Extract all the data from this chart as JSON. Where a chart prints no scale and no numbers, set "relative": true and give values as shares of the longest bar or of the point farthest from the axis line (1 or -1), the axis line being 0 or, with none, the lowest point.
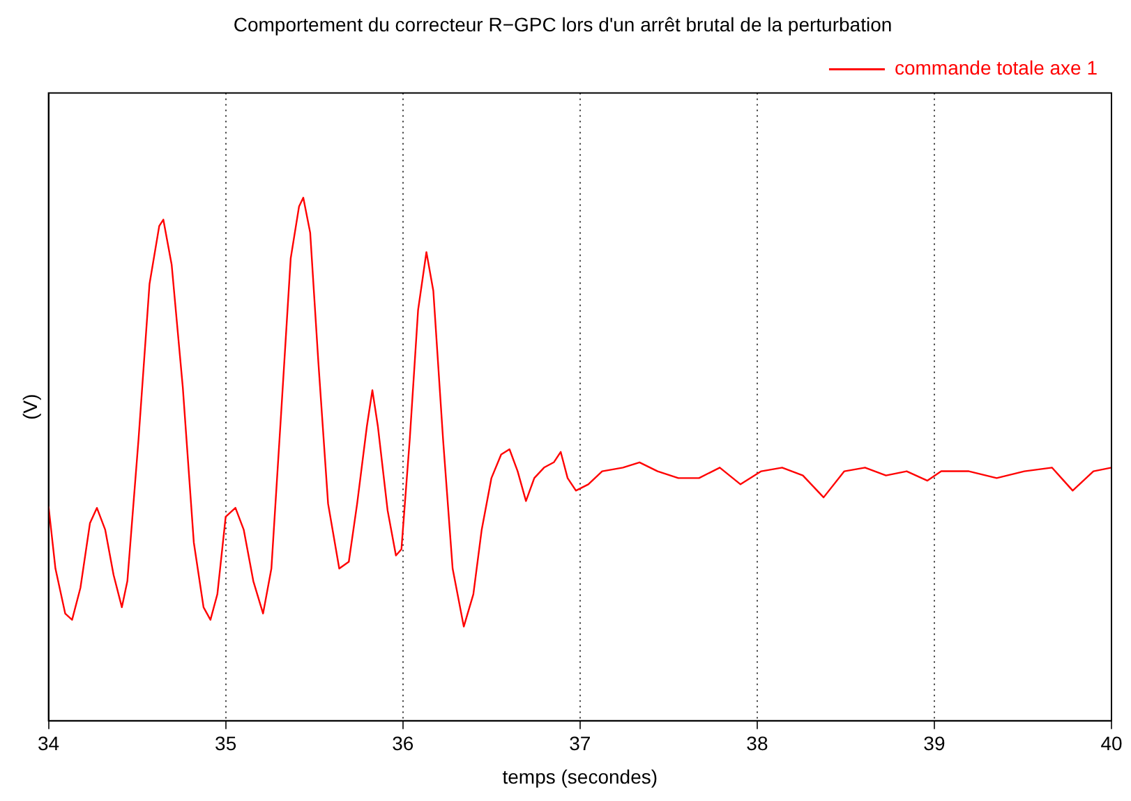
{
  "chart_data": {
    "type": "line",
    "title": "Comportement du correcteur R−GPC lors d'un arrêt brutal de la perturbation",
    "xlabel": "temps (secondes)",
    "ylabel": "(V)",
    "relative": true,
    "xlim": [
      34,
      40
    ],
    "xticks": [
      34,
      35,
      36,
      37,
      38,
      39,
      40
    ],
    "grid": "x",
    "legend": "top right",
    "marker": "none",
    "line_style": "solid",
    "x": [
      34.0,
      34.039,
      34.094,
      34.133,
      34.18,
      34.234,
      34.273,
      34.32,
      34.367,
      34.414,
      34.445,
      34.508,
      34.57,
      34.625,
      34.648,
      34.695,
      34.758,
      34.82,
      34.875,
      34.914,
      34.953,
      35.0,
      35.055,
      35.102,
      35.156,
      35.211,
      35.258,
      35.313,
      35.367,
      35.414,
      35.438,
      35.477,
      35.523,
      35.578,
      35.641,
      35.695,
      35.742,
      35.797,
      35.828,
      35.859,
      35.914,
      35.961,
      35.992,
      36.039,
      36.086,
      36.133,
      36.172,
      36.227,
      36.281,
      36.344,
      36.398,
      36.445,
      36.5,
      36.555,
      36.602,
      36.648,
      36.695,
      36.742,
      36.797,
      36.852,
      36.891,
      36.93,
      36.977,
      37.047,
      37.125,
      37.242,
      37.336,
      37.438,
      37.555,
      37.672,
      37.789,
      37.906,
      38.023,
      38.141,
      38.258,
      38.375,
      38.492,
      38.609,
      38.727,
      38.844,
      38.961,
      39.039,
      39.195,
      39.352,
      39.508,
      39.664,
      39.781,
      39.898,
      40.0
    ],
    "series": [
      {
        "name": "commande totale axe 1",
        "color": "#ff0000",
        "values": [
          0.41,
          0.291,
          0.205,
          0.193,
          0.254,
          0.378,
          0.407,
          0.365,
          0.279,
          0.217,
          0.267,
          0.538,
          0.835,
          0.946,
          0.958,
          0.872,
          0.637,
          0.341,
          0.217,
          0.193,
          0.242,
          0.39,
          0.407,
          0.365,
          0.267,
          0.205,
          0.291,
          0.588,
          0.884,
          0.983,
          1,
          0.933,
          0.686,
          0.415,
          0.291,
          0.304,
          0.415,
          0.563,
          0.632,
          0.563,
          0.402,
          0.316,
          0.328,
          0.538,
          0.785,
          0.896,
          0.822,
          0.538,
          0.291,
          0.18,
          0.242,
          0.365,
          0.464,
          0.509,
          0.519,
          0.477,
          0.42,
          0.464,
          0.484,
          0.494,
          0.514,
          0.464,
          0.44,
          0.452,
          0.477,
          0.484,
          0.494,
          0.477,
          0.464,
          0.464,
          0.484,
          0.452,
          0.477,
          0.484,
          0.469,
          0.427,
          0.477,
          0.484,
          0.469,
          0.477,
          0.459,
          0.477,
          0.477,
          0.464,
          0.477,
          0.484,
          0.44,
          0.477,
          0.484
        ]
      }
    ]
  }
}
